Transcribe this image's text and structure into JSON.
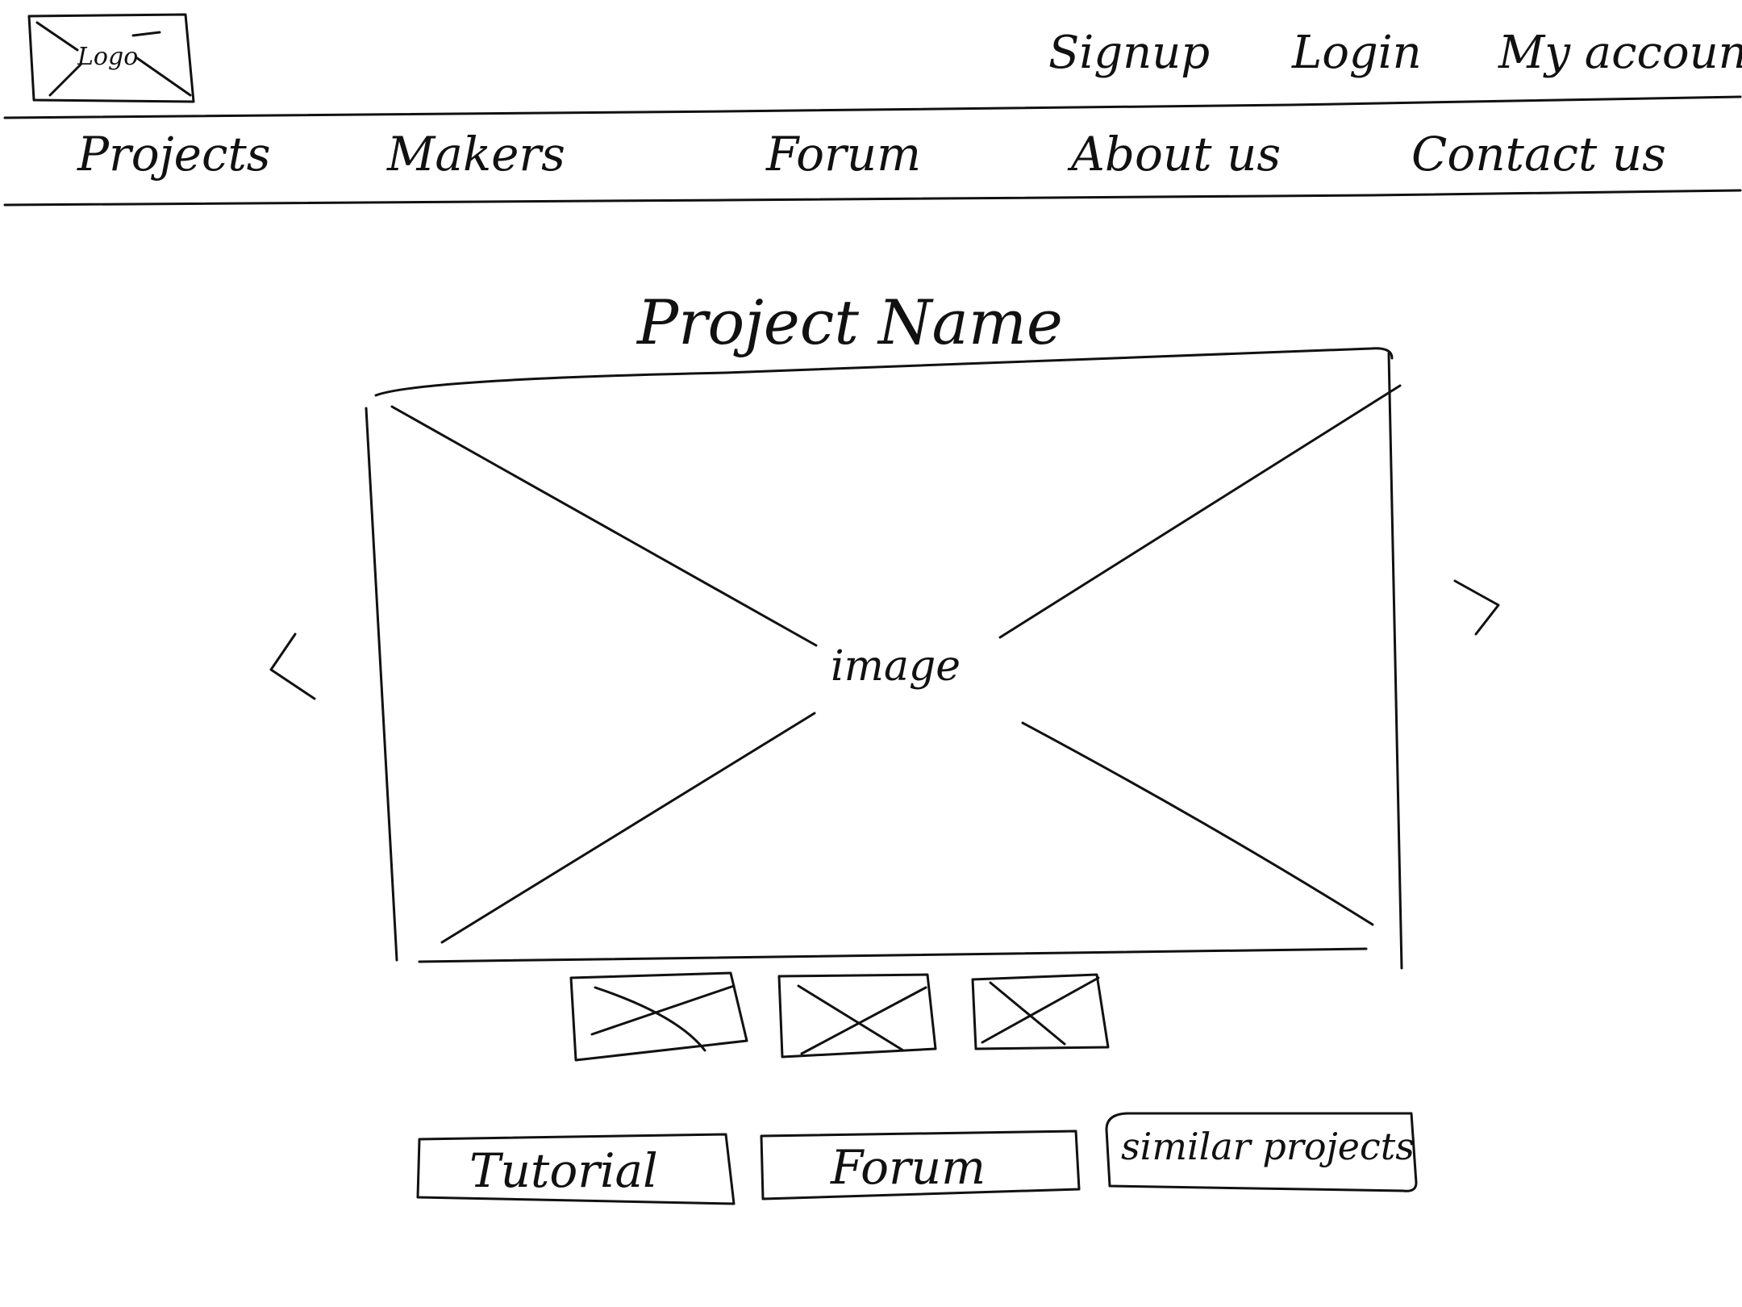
{
  "header": {
    "logo_label": "Logo",
    "utility_links": {
      "signup": "Signup",
      "login": "Login",
      "my_account": "My account"
    }
  },
  "nav": {
    "projects": "Projects",
    "makers": "Makers",
    "forum": "Forum",
    "about": "About us",
    "contact": "Contact us"
  },
  "main": {
    "title": "Project Name",
    "image_label": "image",
    "prev_icon": "chevron-left-icon",
    "next_icon": "chevron-right-icon",
    "thumbnail_count": 3
  },
  "actions": {
    "tutorial": "Tutorial",
    "forum": "Forum",
    "similar_projects": "similar projects"
  }
}
